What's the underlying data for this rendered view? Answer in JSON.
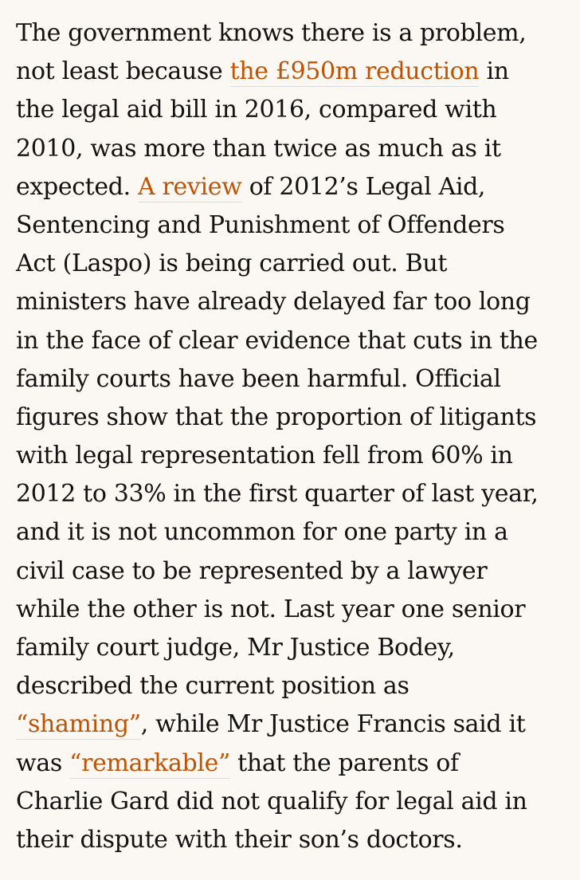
{
  "paragraph": {
    "line_1": "The government knows there is a problem,",
    "line_2_before": "not least because ",
    "link_reduction": "the £950m reduction",
    "line_2_after": " in",
    "line_3": "the legal aid bill in 2016, compared with",
    "line_4": "2010, was more than twice as much as it",
    "line_5_before": "expected. ",
    "link_review": "A review",
    "line_5_after": " of 2012’s Legal Aid,",
    "line_6": "Sentencing and Punishment of Offenders",
    "line_7": "Act (Laspo) is being carried out. But",
    "line_8": "ministers have already delayed far too long",
    "line_9": "in the face of clear evidence that cuts in the",
    "line_10": "family courts have been harmful. Official",
    "line_11": "figures show that the proportion of litigants",
    "line_12": "with legal representation fell from 60% in",
    "line_13": "2012 to 33% in the first quarter of last year,",
    "line_14": "and it is not uncommon for one party in a",
    "line_15": "civil case to be represented by a lawyer",
    "line_16": "while the other is not. Last year one senior",
    "line_17": "family court judge, Mr Justice Bodey,",
    "line_18": "described the current position as",
    "link_shaming": "“shaming”",
    "line_19_after": ", while Mr Justice Francis said it",
    "line_20_before": "was ",
    "link_remarkable": "“remarkable”",
    "line_20_after": " that the parents of",
    "line_21": "Charlie Gard did not qualify for legal aid in",
    "line_22": "their dispute with their son’s doctors."
  },
  "colors": {
    "background": "#fbf8f3",
    "text": "#121212",
    "link": "#c05303",
    "link_underline": "#dcdcdc"
  }
}
